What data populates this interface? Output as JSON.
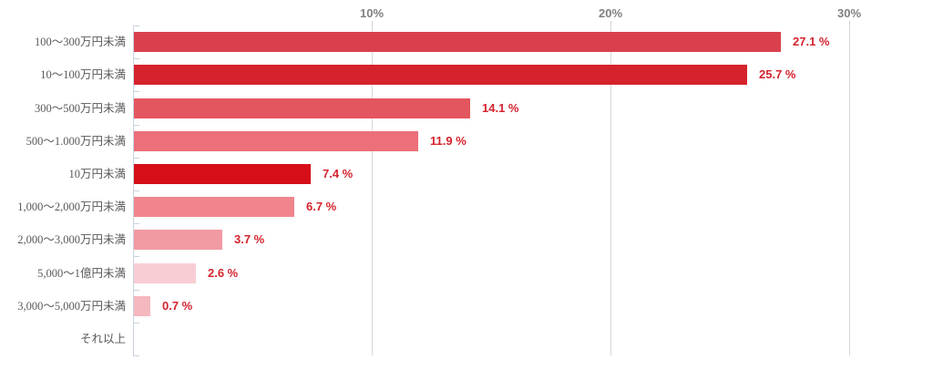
{
  "chart_data": {
    "type": "bar",
    "orientation": "horizontal",
    "title": "",
    "categories": [
      "100〜300万円未満",
      "10〜100万円未満",
      "300〜500万円未満",
      "500〜1.000万円未満",
      "10万円未満",
      "1,000〜2,000万円未満",
      "2,000〜3,000万円未満",
      "5,000〜1億円未満",
      "3,000〜5,000万円未満",
      "それ以上"
    ],
    "values": [
      27.1,
      25.7,
      14.1,
      11.9,
      7.4,
      6.7,
      3.7,
      2.6,
      0.7,
      null
    ],
    "value_labels": [
      "27.1 %",
      "25.7 %",
      "14.1 %",
      "11.9 %",
      "7.4 %",
      "6.7 %",
      "3.7 %",
      "2.6 %",
      "0.7 %",
      ""
    ],
    "bar_colors": [
      "#d9404d",
      "#d5222d",
      "#e3565f",
      "#ec6f79",
      "#d60e18",
      "#f0858e",
      "#f29aa2",
      "#f8ced4",
      "#f5b8be",
      null
    ],
    "x_axis": {
      "tick_labels": [
        "10%",
        "20%",
        "30%"
      ],
      "tick_values": [
        10,
        20,
        30
      ],
      "range": [
        0,
        33
      ],
      "grid": true,
      "position": "top"
    },
    "legend": null,
    "colors": {
      "value_label": "#d5232e",
      "category_label": "#595959",
      "axis_tick_label": "#7f7f7f",
      "gridline": "#d9d9d9",
      "category_axis_line": "#c9d2de"
    }
  }
}
